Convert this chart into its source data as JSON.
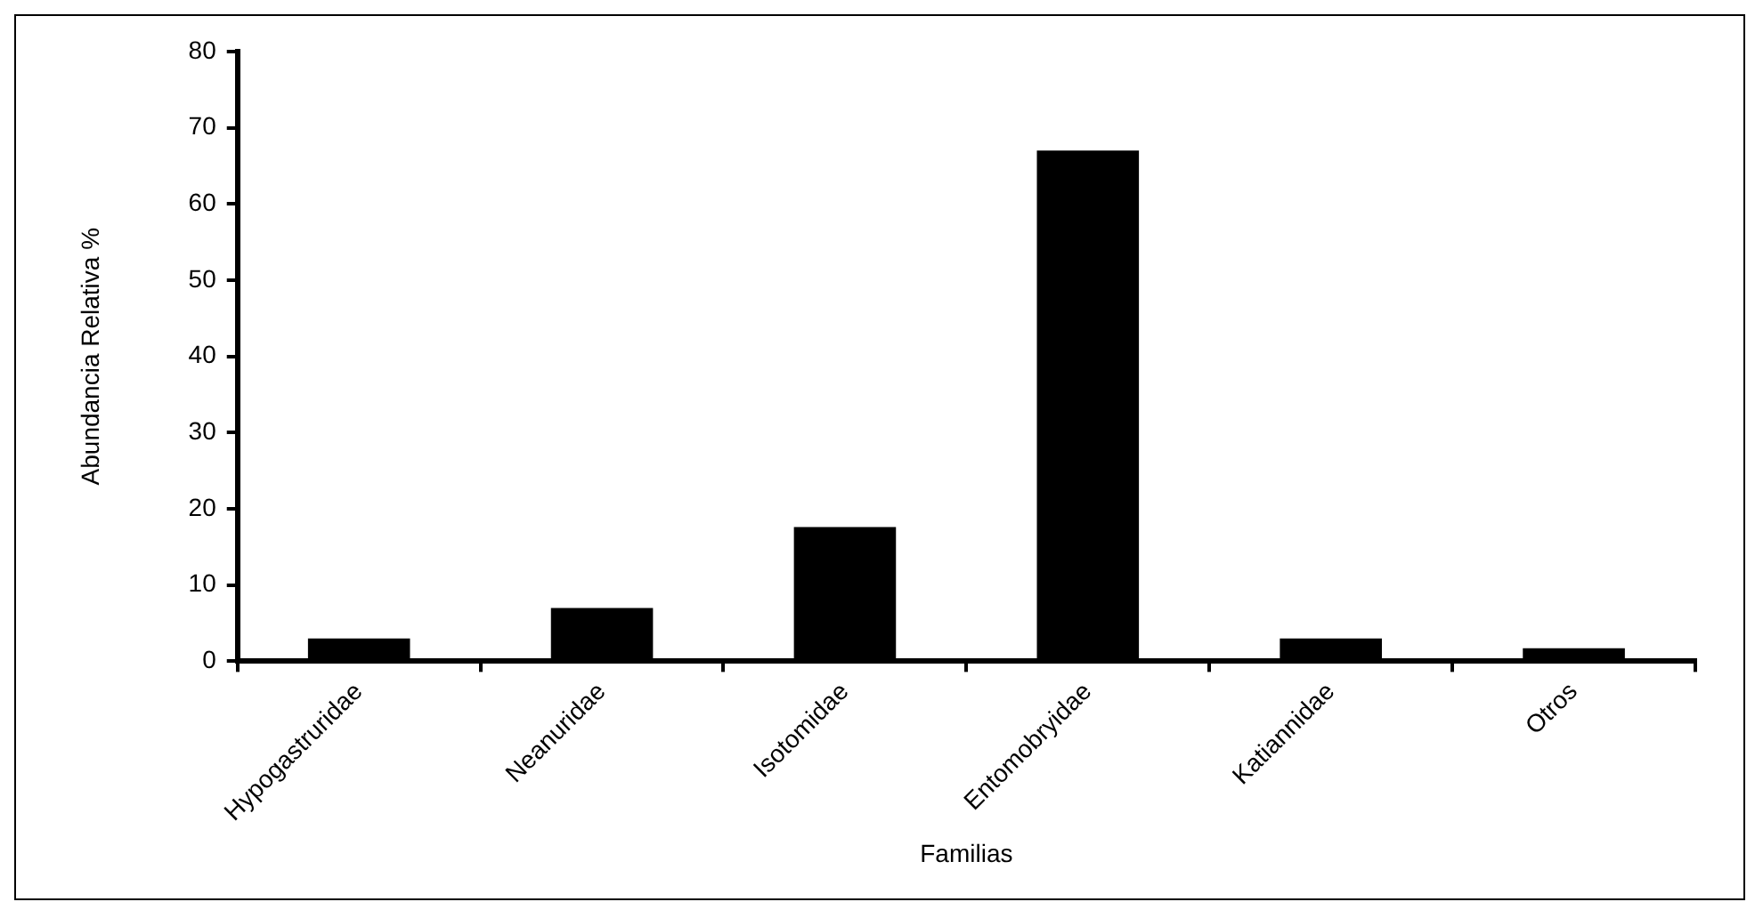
{
  "chart_data": {
    "type": "bar",
    "xlabel": "Familias",
    "ylabel": "Abundancia Relativa %",
    "categories": [
      "Hypogastruridae",
      "Neanuridae",
      "Isotomidae",
      "Entomobryidae",
      "Katiannidae",
      "Otros"
    ],
    "values": [
      3,
      7,
      17.6,
      67,
      3,
      1.7
    ],
    "color": "#000000",
    "ylim": [
      0,
      80
    ],
    "yticks": [
      0,
      10,
      20,
      30,
      40,
      50,
      60,
      70,
      80
    ],
    "grid": false,
    "legend": false
  }
}
